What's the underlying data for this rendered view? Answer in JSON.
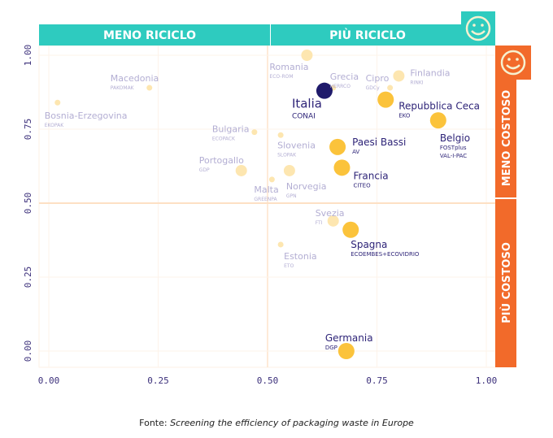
{
  "chart_data": {
    "type": "scatter",
    "title": "",
    "xlabel": "",
    "ylabel": "",
    "xlim": [
      0,
      1
    ],
    "ylim": [
      0,
      1
    ],
    "x_ticks": [
      "0.00",
      "0.25",
      "0.50",
      "0.75",
      "1.00"
    ],
    "y_ticks": [
      "0.00",
      "0.25",
      "0.50",
      "0.75",
      "1.00"
    ],
    "grid": true,
    "quadrant_labels": {
      "top_left": "MENO RICICLO",
      "top_right": "PIÙ RICICLO",
      "right_upper": "MENO COSTOSO",
      "right_lower": "PIÙ COSTOSO"
    },
    "colors": {
      "teal": "#2ecbbf",
      "orange": "#f26a2a",
      "highlight": "#1f1a6b",
      "point": "#fbc33b",
      "point_faded": "#fde6b0",
      "label": "#2e2478",
      "label_faded": "#b3aed3"
    },
    "points": [
      {
        "name": "Macedonia",
        "org": "PAKOMAK",
        "x": 0.23,
        "y": 0.89,
        "size": 1,
        "faded": true
      },
      {
        "name": "Bosnia-Erzegovina",
        "org": "EKOPAK",
        "x": 0.02,
        "y": 0.84,
        "size": 1,
        "faded": true
      },
      {
        "name": "Romania",
        "org": "ECO-ROM",
        "x": 0.59,
        "y": 1.0,
        "size": 2,
        "faded": true
      },
      {
        "name": "Grecia",
        "org": "HERRCO",
        "x": 0.65,
        "y": 0.89,
        "size": 1,
        "faded": true
      },
      {
        "name": "Cipro",
        "org": "GDCy",
        "x": 0.78,
        "y": 0.89,
        "size": 1,
        "faded": true
      },
      {
        "name": "Finlandia",
        "org": "RINKI",
        "x": 0.8,
        "y": 0.93,
        "size": 2,
        "faded": true
      },
      {
        "name": "Italia",
        "org": "CONAI",
        "x": 0.63,
        "y": 0.88,
        "size": 3,
        "faded": false,
        "highlight": true
      },
      {
        "name": "Repubblica Ceca",
        "org": "EKO",
        "x": 0.77,
        "y": 0.85,
        "size": 3,
        "faded": false
      },
      {
        "name": "Belgio",
        "org": "FOSTplus",
        "org2": "VAL-I-PAC",
        "x": 0.89,
        "y": 0.78,
        "size": 3,
        "faded": false
      },
      {
        "name": "Bulgaria",
        "org": "ECOPACK",
        "x": 0.47,
        "y": 0.74,
        "size": 1,
        "faded": true
      },
      {
        "name": "Slovenia",
        "org": "SLOPAK",
        "x": 0.53,
        "y": 0.73,
        "size": 1,
        "faded": true
      },
      {
        "name": "Paesi Bassi",
        "org": "AV",
        "x": 0.66,
        "y": 0.69,
        "size": 3,
        "faded": false
      },
      {
        "name": "Francia",
        "org": "CITEO",
        "x": 0.67,
        "y": 0.62,
        "size": 3,
        "faded": false
      },
      {
        "name": "Portogallo",
        "org": "GDP",
        "x": 0.44,
        "y": 0.61,
        "size": 2,
        "faded": true
      },
      {
        "name": "Norvegia",
        "org": "GPN",
        "x": 0.55,
        "y": 0.61,
        "size": 2,
        "faded": true
      },
      {
        "name": "Malta",
        "org": "GREENPA",
        "x": 0.51,
        "y": 0.58,
        "size": 1,
        "faded": true
      },
      {
        "name": "Svezia",
        "org": "FTI",
        "x": 0.65,
        "y": 0.44,
        "size": 2,
        "faded": true
      },
      {
        "name": "Spagna",
        "org": "ECOEMBES+ECOVIDRIO",
        "x": 0.69,
        "y": 0.41,
        "size": 3,
        "faded": false
      },
      {
        "name": "Estonia",
        "org": "ETO",
        "x": 0.53,
        "y": 0.36,
        "size": 1,
        "faded": true
      },
      {
        "name": "Germania",
        "org": "DGP",
        "x": 0.68,
        "y": 0.0,
        "size": 3,
        "faded": false
      }
    ]
  },
  "source": {
    "prefix": "Fonte: ",
    "text": "Screening the efficiency of packaging waste in Europe"
  }
}
